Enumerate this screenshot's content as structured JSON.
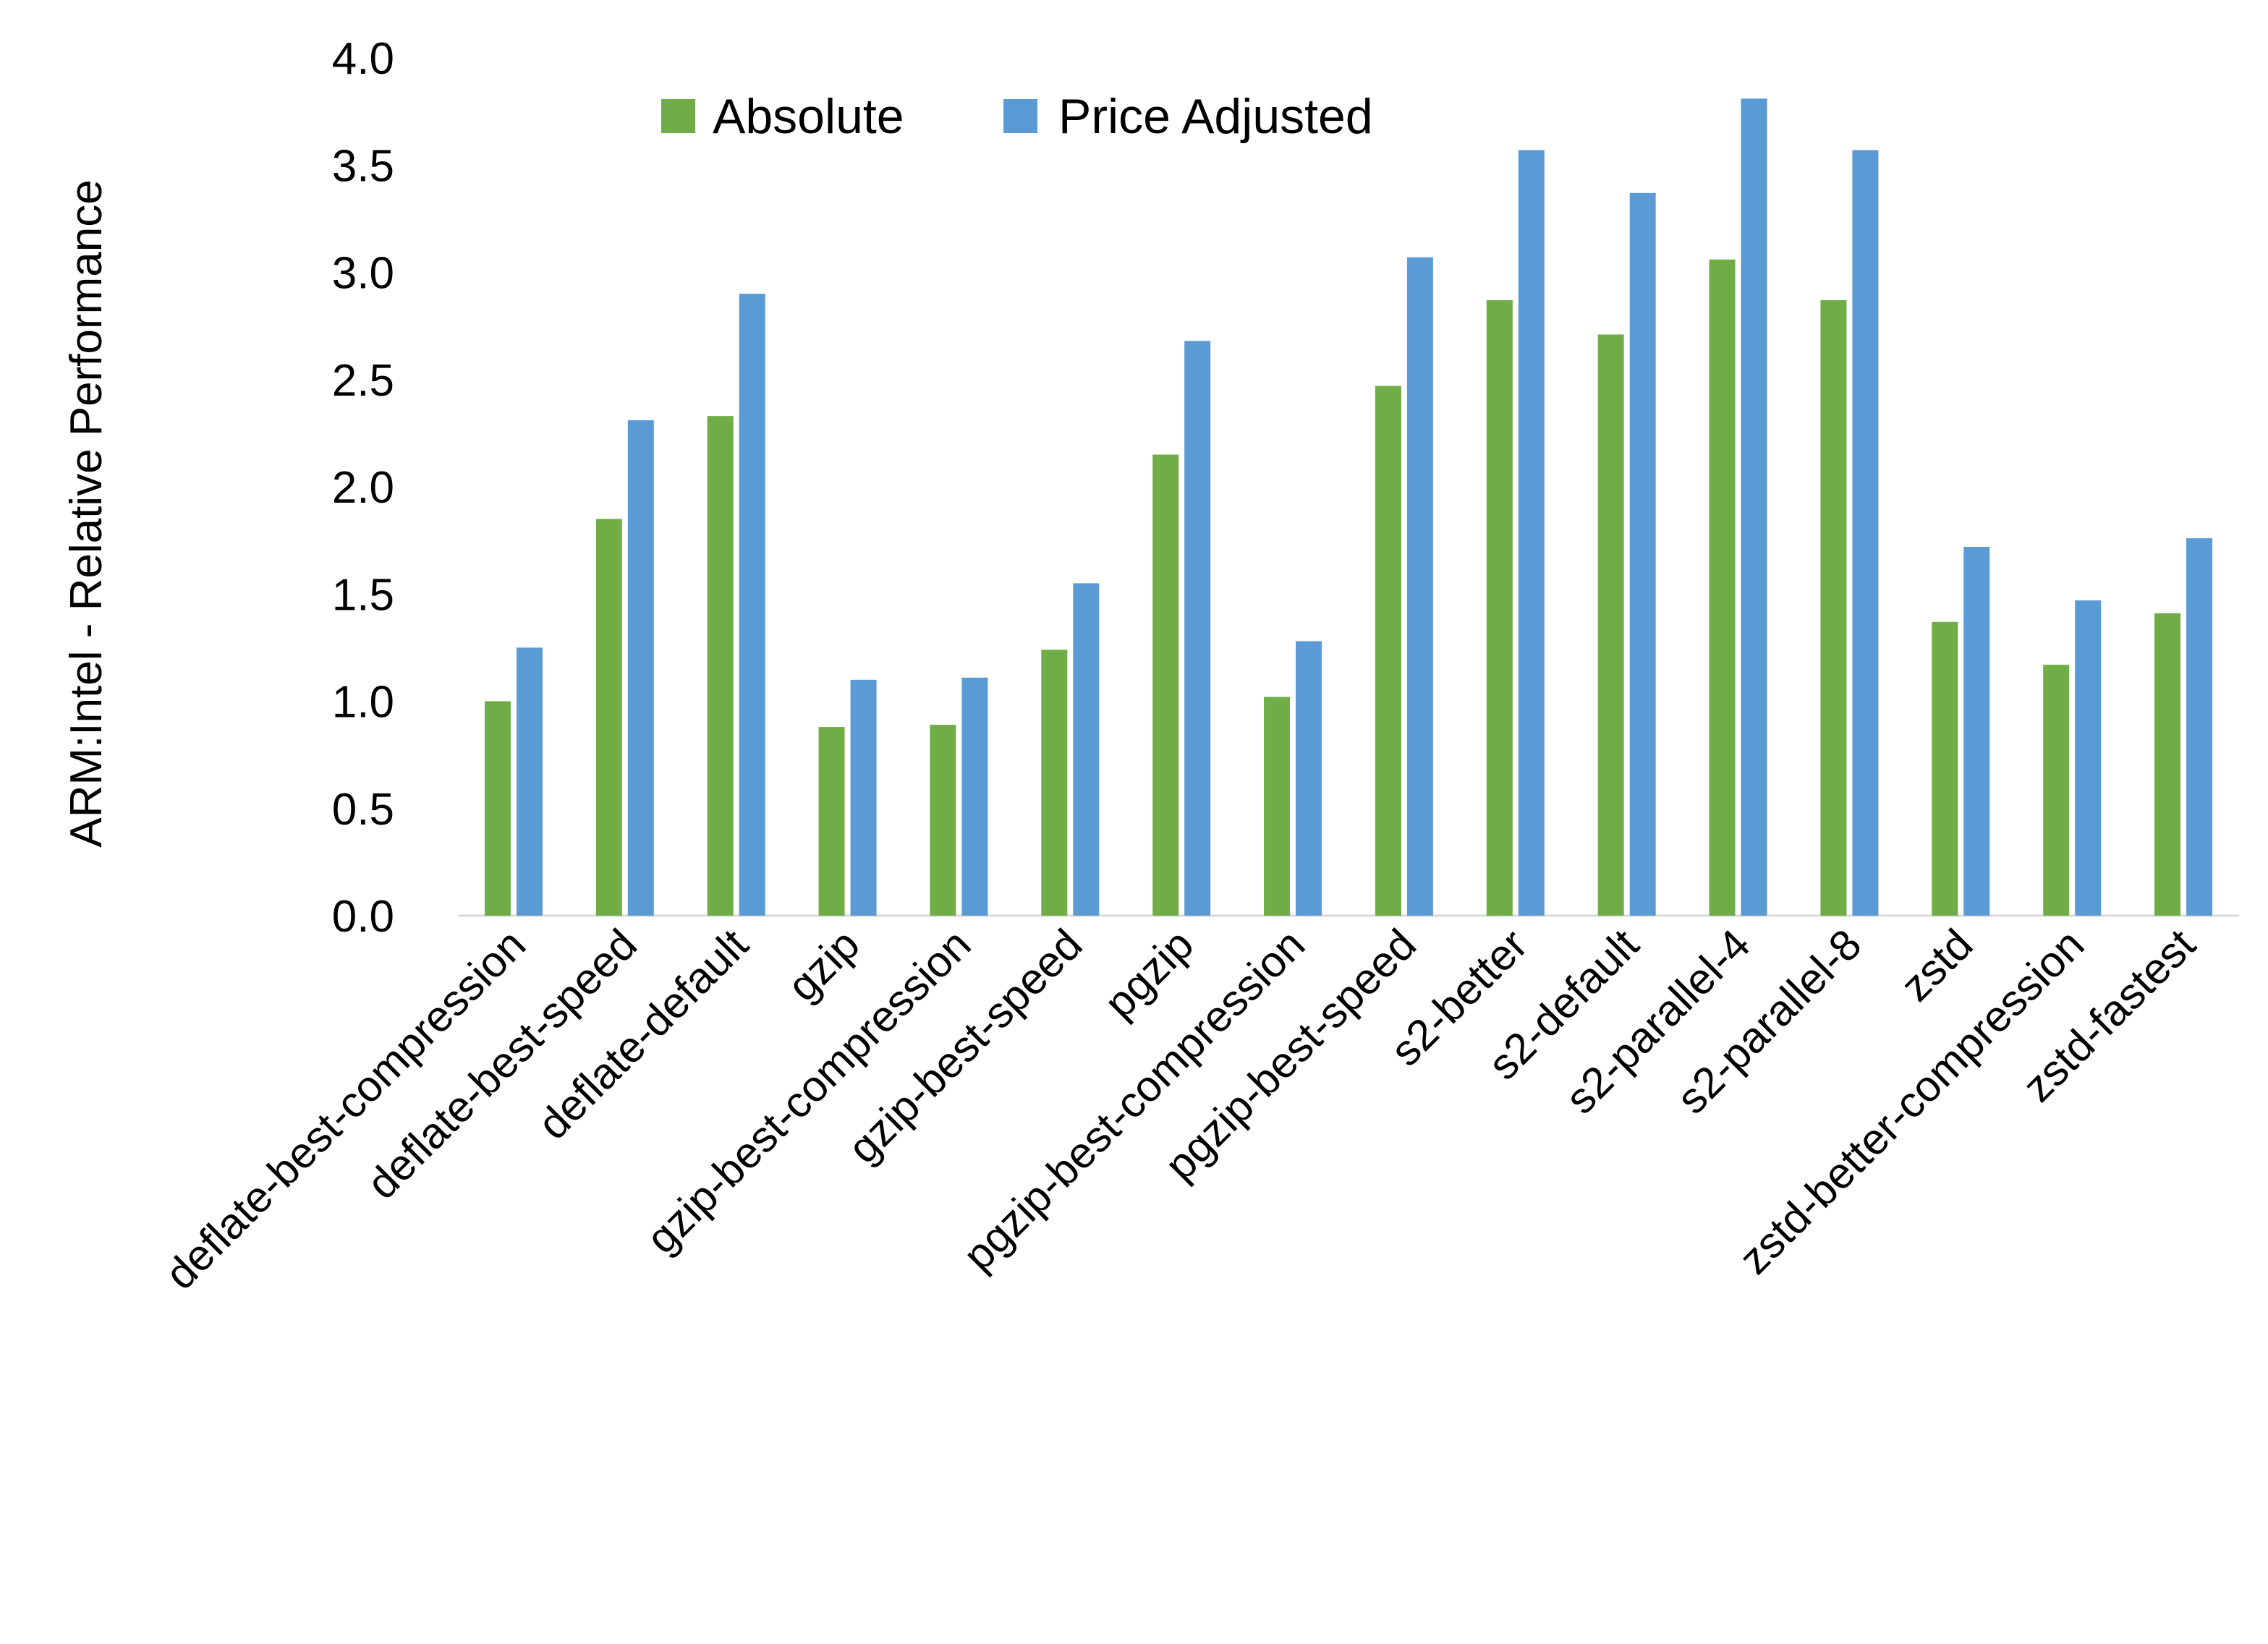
{
  "chart_data": {
    "type": "bar",
    "title": "",
    "xlabel": "",
    "ylabel": "ARM:Intel - Relative Performance",
    "ylim": [
      0,
      4.0
    ],
    "yticks": [
      "0.0",
      "0.5",
      "1.0",
      "1.5",
      "2.0",
      "2.5",
      "3.0",
      "3.5",
      "4.0"
    ],
    "grid": false,
    "legend_position": "top",
    "categories": [
      "deflate-best-compression",
      "deflate-best-speed",
      "deflate-default",
      "gzip",
      "gzip-best-compression",
      "gzip-best-speed",
      "pgzip",
      "pgzip-best-compression",
      "pgzip-best-speed",
      "s2-better",
      "s2-default",
      "s2-parallel-4",
      "s2-parallel-8",
      "zstd",
      "zstd-better-compression",
      "zstd-fastest"
    ],
    "series": [
      {
        "name": "Absolute",
        "color": "#70AD47",
        "values": [
          1.0,
          1.85,
          2.33,
          0.88,
          0.89,
          1.24,
          2.15,
          1.02,
          2.47,
          2.87,
          2.71,
          3.06,
          2.87,
          1.37,
          1.17,
          1.41
        ]
      },
      {
        "name": "Price Adjusted",
        "color": "#5B9BD5",
        "values": [
          1.25,
          2.31,
          2.9,
          1.1,
          1.11,
          1.55,
          2.68,
          1.28,
          3.07,
          3.57,
          3.37,
          3.81,
          3.57,
          1.72,
          1.47,
          1.76
        ]
      }
    ]
  }
}
